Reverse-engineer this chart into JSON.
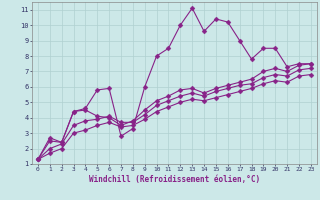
{
  "xlabel": "Windchill (Refroidissement éolien,°C)",
  "bg_color": "#cce8e8",
  "grid_color": "#b0d0d0",
  "line_color": "#882288",
  "xlim": [
    -0.5,
    23.5
  ],
  "ylim": [
    1,
    11.5
  ],
  "xticks": [
    0,
    1,
    2,
    3,
    4,
    5,
    6,
    7,
    8,
    9,
    10,
    11,
    12,
    13,
    14,
    15,
    16,
    17,
    18,
    19,
    20,
    21,
    22,
    23
  ],
  "yticks": [
    1,
    2,
    3,
    4,
    5,
    6,
    7,
    8,
    9,
    10,
    11
  ],
  "series": [
    [
      0,
      1,
      2,
      3,
      4,
      5,
      6,
      7,
      8,
      9,
      10,
      11,
      12,
      13,
      14,
      15,
      16,
      17,
      18,
      19,
      20,
      21,
      22,
      23
    ],
    [
      1.3,
      2.7,
      2.4,
      4.4,
      4.6,
      5.8,
      5.9,
      2.8,
      3.3,
      6.0,
      8.0,
      8.5,
      10.0,
      11.1,
      9.6,
      10.4,
      10.2,
      9.0,
      7.8,
      8.5,
      8.5,
      7.3,
      7.5,
      7.5
    ],
    [
      1.3,
      2.5,
      2.4,
      4.4,
      4.5,
      4.1,
      4.0,
      3.5,
      3.8,
      4.5,
      5.1,
      5.4,
      5.8,
      5.9,
      5.6,
      5.9,
      6.1,
      6.3,
      6.5,
      7.0,
      7.2,
      7.0,
      7.4,
      7.5
    ],
    [
      1.3,
      2.0,
      2.3,
      3.5,
      3.8,
      3.9,
      4.1,
      3.7,
      3.7,
      4.2,
      4.8,
      5.1,
      5.4,
      5.6,
      5.4,
      5.7,
      5.9,
      6.1,
      6.2,
      6.6,
      6.8,
      6.7,
      7.1,
      7.2
    ],
    [
      1.3,
      1.7,
      2.0,
      3.0,
      3.2,
      3.5,
      3.7,
      3.4,
      3.5,
      3.9,
      4.4,
      4.7,
      5.0,
      5.2,
      5.1,
      5.3,
      5.5,
      5.7,
      5.9,
      6.2,
      6.4,
      6.3,
      6.7,
      6.8
    ]
  ],
  "markersize": 2.5,
  "linewidth": 0.8
}
